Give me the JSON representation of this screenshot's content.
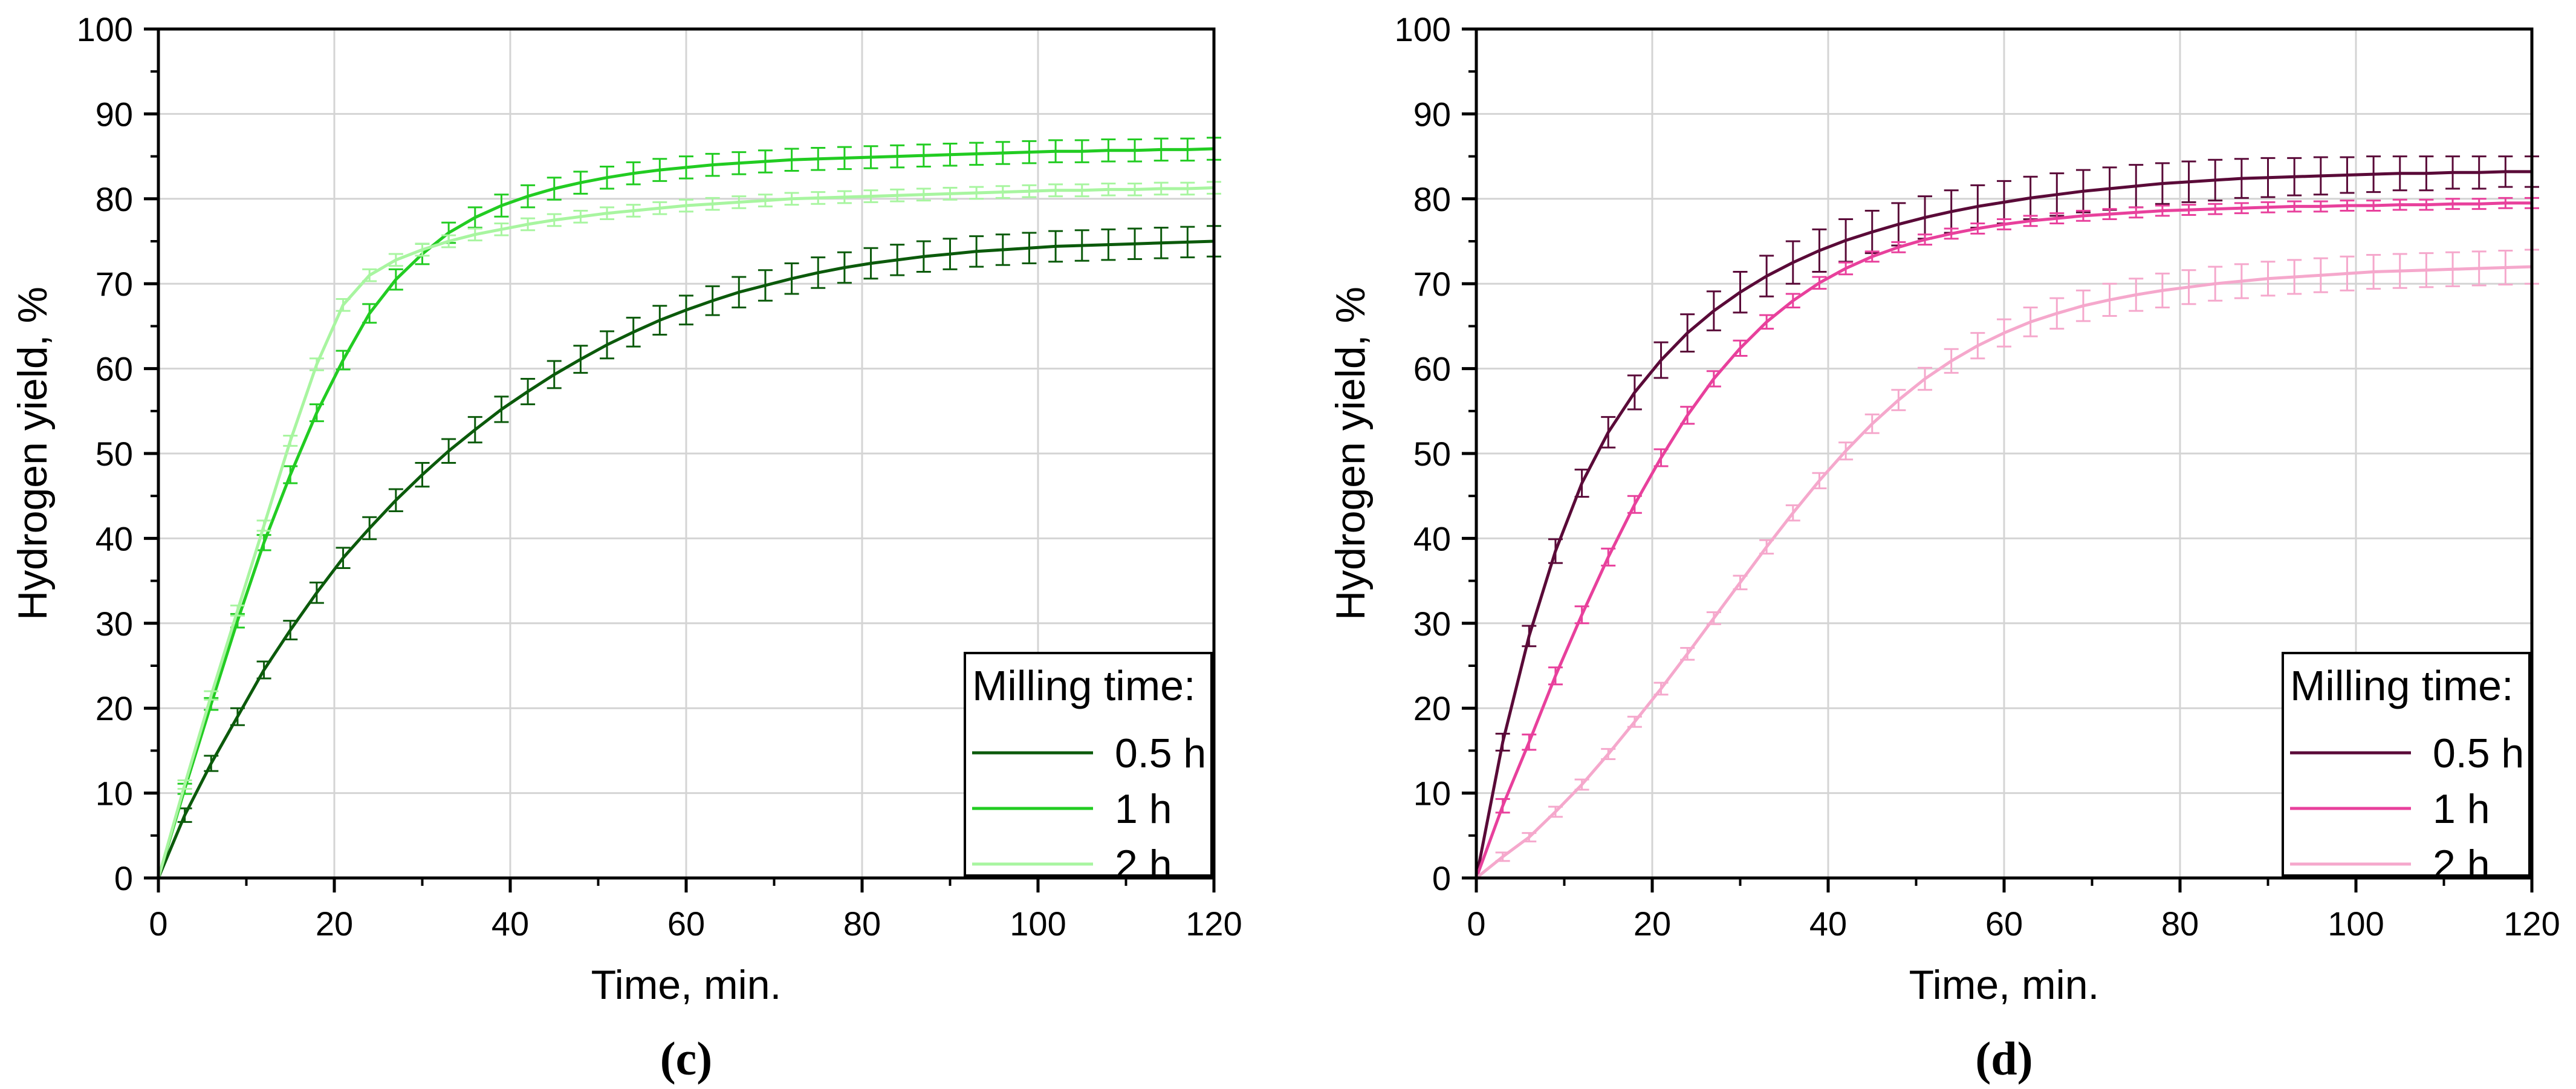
{
  "chart_data": [
    {
      "type": "line",
      "panel_label": "(c)",
      "xlabel": "Time, min.",
      "ylabel": "Hydrogen yield, %",
      "xlim": [
        0,
        120
      ],
      "ylim": [
        0,
        100
      ],
      "x_ticks": [
        0,
        20,
        40,
        60,
        80,
        100,
        120
      ],
      "y_ticks": [
        0,
        10,
        20,
        30,
        40,
        50,
        60,
        70,
        80,
        90,
        100
      ],
      "grid": true,
      "legend": {
        "title": "Milling time:",
        "position": "bottom-right"
      },
      "series": [
        {
          "name": "0.5 h",
          "color": "#0b5a0b",
          "x": [
            0,
            3,
            6,
            9,
            12,
            15,
            18,
            21,
            24,
            27,
            30,
            33,
            36,
            39,
            42,
            45,
            48,
            51,
            54,
            57,
            60,
            63,
            66,
            69,
            72,
            75,
            78,
            81,
            84,
            87,
            90,
            93,
            96,
            99,
            102,
            105,
            108,
            111,
            114,
            117,
            120
          ],
          "y": [
            0,
            7.4,
            13.5,
            19,
            24.5,
            29.2,
            33.6,
            37.7,
            41.2,
            44.5,
            47.5,
            50.3,
            52.8,
            55.2,
            57.3,
            59.3,
            61.1,
            62.8,
            64.3,
            65.7,
            66.9,
            68,
            69,
            69.8,
            70.6,
            71.3,
            71.9,
            72.4,
            72.8,
            73.2,
            73.5,
            73.8,
            74,
            74.2,
            74.4,
            74.5,
            74.6,
            74.7,
            74.8,
            74.9,
            75
          ],
          "err": [
            0,
            0.8,
            0.9,
            1,
            1,
            1.1,
            1.2,
            1.2,
            1.3,
            1.3,
            1.4,
            1.4,
            1.5,
            1.5,
            1.5,
            1.6,
            1.6,
            1.6,
            1.7,
            1.7,
            1.7,
            1.7,
            1.8,
            1.8,
            1.8,
            1.8,
            1.8,
            1.8,
            1.8,
            1.8,
            1.8,
            1.8,
            1.8,
            1.8,
            1.8,
            1.8,
            1.8,
            1.8,
            1.8,
            1.8,
            1.8
          ]
        },
        {
          "name": "1 h",
          "color": "#22cc22",
          "x": [
            0,
            3,
            6,
            9,
            12,
            15,
            18,
            21,
            24,
            27,
            30,
            33,
            36,
            39,
            42,
            45,
            48,
            51,
            54,
            57,
            60,
            63,
            66,
            69,
            72,
            75,
            78,
            81,
            84,
            87,
            90,
            93,
            96,
            99,
            102,
            105,
            108,
            111,
            114,
            117,
            120
          ],
          "y": [
            0,
            10.5,
            20.5,
            30.3,
            39.5,
            47.5,
            54.8,
            61,
            66.5,
            70.5,
            73.5,
            76,
            77.8,
            79.2,
            80.3,
            81.2,
            81.9,
            82.5,
            83,
            83.4,
            83.7,
            84,
            84.2,
            84.4,
            84.6,
            84.7,
            84.8,
            84.9,
            85,
            85.1,
            85.2,
            85.3,
            85.4,
            85.5,
            85.6,
            85.6,
            85.7,
            85.7,
            85.8,
            85.8,
            85.9
          ],
          "err": [
            0,
            0.6,
            0.7,
            0.8,
            0.9,
            1,
            1,
            1.1,
            1.1,
            1.2,
            1.2,
            1.2,
            1.2,
            1.3,
            1.3,
            1.3,
            1.3,
            1.3,
            1.3,
            1.3,
            1.3,
            1.3,
            1.3,
            1.3,
            1.3,
            1.3,
            1.3,
            1.3,
            1.3,
            1.3,
            1.3,
            1.3,
            1.3,
            1.3,
            1.3,
            1.3,
            1.3,
            1.3,
            1.3,
            1.3,
            1.3
          ]
        },
        {
          "name": "2 h",
          "color": "#a8f5a0",
          "x": [
            0,
            3,
            6,
            9,
            12,
            15,
            18,
            21,
            24,
            27,
            30,
            33,
            36,
            39,
            42,
            45,
            48,
            51,
            54,
            57,
            60,
            63,
            66,
            69,
            72,
            75,
            78,
            81,
            84,
            87,
            90,
            93,
            96,
            99,
            102,
            105,
            108,
            111,
            114,
            117,
            120
          ],
          "y": [
            0,
            11,
            21.5,
            31.5,
            41.5,
            51.5,
            60.5,
            67.5,
            71,
            72.8,
            74,
            75,
            75.8,
            76.4,
            77,
            77.5,
            77.9,
            78.3,
            78.6,
            78.9,
            79.2,
            79.4,
            79.6,
            79.8,
            80,
            80.1,
            80.2,
            80.3,
            80.4,
            80.5,
            80.6,
            80.7,
            80.8,
            80.9,
            81,
            81,
            81.1,
            81.1,
            81.2,
            81.2,
            81.3
          ],
          "err": [
            0,
            0.5,
            0.5,
            0.6,
            0.6,
            0.6,
            0.7,
            0.7,
            0.7,
            0.7,
            0.7,
            0.7,
            0.7,
            0.7,
            0.7,
            0.7,
            0.7,
            0.7,
            0.7,
            0.7,
            0.7,
            0.7,
            0.7,
            0.7,
            0.7,
            0.7,
            0.7,
            0.7,
            0.7,
            0.7,
            0.7,
            0.7,
            0.7,
            0.7,
            0.7,
            0.7,
            0.7,
            0.7,
            0.7,
            0.7,
            0.7
          ]
        }
      ]
    },
    {
      "type": "line",
      "panel_label": "(d)",
      "xlabel": "Time, min.",
      "ylabel": "Hydrogen yield, %",
      "xlim": [
        0,
        120
      ],
      "ylim": [
        0,
        100
      ],
      "x_ticks": [
        0,
        20,
        40,
        60,
        80,
        100,
        120
      ],
      "y_ticks": [
        0,
        10,
        20,
        30,
        40,
        50,
        60,
        70,
        80,
        90,
        100
      ],
      "grid": true,
      "legend": {
        "title": "Milling time:",
        "position": "bottom-right"
      },
      "series": [
        {
          "name": "0.5 h",
          "color": "#5a0a38",
          "x": [
            0,
            3,
            6,
            9,
            12,
            15,
            18,
            21,
            24,
            27,
            30,
            33,
            36,
            39,
            42,
            45,
            48,
            51,
            54,
            57,
            60,
            63,
            66,
            69,
            72,
            75,
            78,
            81,
            84,
            87,
            90,
            93,
            96,
            99,
            102,
            105,
            108,
            111,
            114,
            117,
            120
          ],
          "y": [
            0,
            16,
            28.5,
            38.5,
            46.5,
            52.5,
            57.2,
            61,
            64.2,
            66.8,
            69,
            70.9,
            72.5,
            73.9,
            75.1,
            76.1,
            77,
            77.8,
            78.5,
            79.1,
            79.6,
            80.1,
            80.5,
            80.9,
            81.2,
            81.5,
            81.8,
            82,
            82.2,
            82.4,
            82.5,
            82.6,
            82.7,
            82.8,
            82.9,
            83,
            83,
            83.1,
            83.1,
            83.2,
            83.2
          ],
          "err": [
            0,
            1,
            1.2,
            1.4,
            1.6,
            1.8,
            2,
            2.1,
            2.2,
            2.3,
            2.4,
            2.4,
            2.5,
            2.5,
            2.5,
            2.5,
            2.5,
            2.5,
            2.5,
            2.5,
            2.5,
            2.5,
            2.5,
            2.5,
            2.5,
            2.5,
            2.4,
            2.4,
            2.4,
            2.3,
            2.3,
            2.2,
            2.2,
            2.1,
            2.1,
            2,
            2,
            1.9,
            1.9,
            1.8,
            1.8
          ]
        },
        {
          "name": "1 h",
          "color": "#e8409c",
          "x": [
            0,
            3,
            6,
            9,
            12,
            15,
            18,
            21,
            24,
            27,
            30,
            33,
            36,
            39,
            42,
            45,
            48,
            51,
            54,
            57,
            60,
            63,
            66,
            69,
            72,
            75,
            78,
            81,
            84,
            87,
            90,
            93,
            96,
            99,
            102,
            105,
            108,
            111,
            114,
            117,
            120
          ],
          "y": [
            0,
            8.5,
            16,
            23.8,
            31,
            37.8,
            44,
            49.5,
            54.5,
            58.8,
            62.4,
            65.5,
            68,
            70.1,
            71.8,
            73.2,
            74.3,
            75.2,
            75.9,
            76.5,
            77,
            77.4,
            77.7,
            78,
            78.2,
            78.4,
            78.6,
            78.7,
            78.8,
            78.9,
            79,
            79.1,
            79.1,
            79.2,
            79.2,
            79.3,
            79.3,
            79.4,
            79.4,
            79.5,
            79.5
          ],
          "err": [
            0,
            0.8,
            0.9,
            1,
            1,
            1,
            1,
            1,
            1,
            0.9,
            0.9,
            0.8,
            0.8,
            0.7,
            0.7,
            0.6,
            0.6,
            0.6,
            0.6,
            0.6,
            0.6,
            0.6,
            0.6,
            0.6,
            0.6,
            0.6,
            0.6,
            0.6,
            0.6,
            0.6,
            0.6,
            0.6,
            0.6,
            0.6,
            0.6,
            0.6,
            0.6,
            0.6,
            0.6,
            0.6,
            0.6
          ]
        },
        {
          "name": "2 h",
          "color": "#f5a8cc",
          "x": [
            0,
            3,
            6,
            9,
            12,
            15,
            18,
            21,
            24,
            27,
            30,
            33,
            36,
            39,
            42,
            45,
            48,
            51,
            54,
            57,
            60,
            63,
            66,
            69,
            72,
            75,
            78,
            81,
            84,
            87,
            90,
            93,
            96,
            99,
            102,
            105,
            108,
            111,
            114,
            117,
            120
          ],
          "y": [
            0,
            2.5,
            4.8,
            7.8,
            11,
            14.6,
            18.4,
            22.3,
            26.4,
            30.6,
            34.8,
            39,
            43,
            46.8,
            50.3,
            53.5,
            56.3,
            58.8,
            60.9,
            62.7,
            64.2,
            65.5,
            66.5,
            67.4,
            68.1,
            68.7,
            69.2,
            69.6,
            70,
            70.3,
            70.6,
            70.8,
            71,
            71.2,
            71.4,
            71.5,
            71.6,
            71.7,
            71.8,
            71.9,
            72
          ],
          "err": [
            0,
            0.5,
            0.5,
            0.6,
            0.6,
            0.6,
            0.6,
            0.7,
            0.7,
            0.7,
            0.8,
            0.8,
            0.9,
            0.9,
            1,
            1.1,
            1.2,
            1.3,
            1.4,
            1.5,
            1.6,
            1.7,
            1.8,
            1.8,
            1.9,
            1.9,
            2,
            2,
            2,
            2,
            2,
            2,
            2,
            2,
            2,
            2,
            2,
            2,
            2,
            2,
            2
          ]
        }
      ]
    }
  ]
}
